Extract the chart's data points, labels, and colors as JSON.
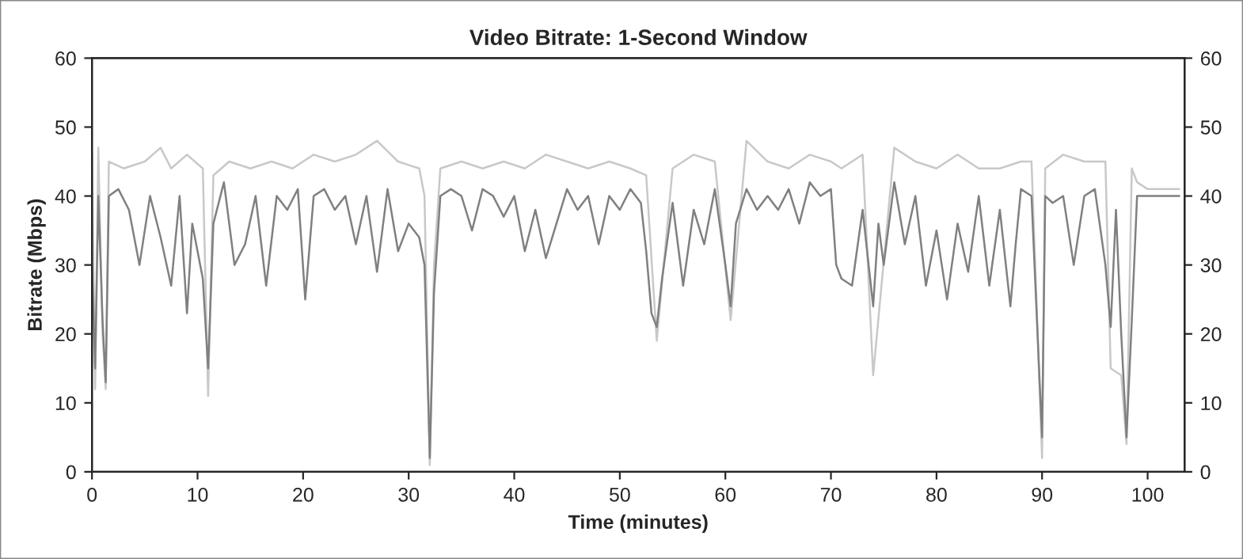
{
  "chart_data": {
    "type": "line",
    "title": "Video Bitrate: 1-Second Window",
    "xlabel": "Time (minutes)",
    "ylabel": "Bitrate (Mbps)",
    "xlim": [
      0,
      103.5
    ],
    "xticks": [
      0,
      10,
      20,
      30,
      40,
      50,
      60,
      70,
      80,
      90,
      100
    ],
    "ylim": [
      0,
      60
    ],
    "yticks": [
      0,
      10,
      20,
      30,
      40,
      50,
      60
    ],
    "y2lim": [
      0,
      60
    ],
    "y2ticks": [
      0,
      10,
      20,
      30,
      40,
      50,
      60
    ],
    "grid": false,
    "legend": false,
    "marker": "none",
    "line_style": "solid",
    "series": [
      {
        "color": "#c8c8c8",
        "x": [
          0,
          0.3,
          0.6,
          1.0,
          1.3,
          1.6,
          3,
          5,
          6.5,
          7.5,
          9,
          10.5,
          11.0,
          11.5,
          13,
          15,
          17,
          19,
          21,
          23,
          25,
          27,
          29,
          31,
          31.5,
          32.0,
          32.4,
          33,
          35,
          37,
          39,
          41,
          43,
          45,
          47,
          49,
          51,
          52.5,
          53.5,
          55,
          57,
          59,
          60.5,
          62,
          64,
          66,
          68,
          70,
          71,
          73,
          74,
          76,
          78,
          80,
          82,
          84,
          86,
          88,
          89,
          90.0,
          90.3,
          92,
          94,
          96,
          96.5,
          97.5,
          98.0,
          98.5,
          99.0,
          100,
          101,
          102,
          103
        ],
        "values": [
          46,
          12,
          47,
          20,
          12,
          45,
          44,
          45,
          47,
          44,
          46,
          44,
          11,
          43,
          45,
          44,
          45,
          44,
          46,
          45,
          46,
          48,
          45,
          44,
          40,
          1,
          30,
          44,
          45,
          44,
          45,
          44,
          46,
          45,
          44,
          45,
          44,
          43,
          19,
          44,
          46,
          45,
          22,
          48,
          45,
          44,
          46,
          45,
          44,
          46,
          14,
          47,
          45,
          44,
          46,
          44,
          44,
          45,
          45,
          2,
          44,
          46,
          45,
          45,
          15,
          14,
          4,
          44,
          42,
          41,
          41,
          41,
          41
        ]
      },
      {
        "color": "#808080",
        "x": [
          0,
          0.3,
          0.6,
          1.0,
          1.3,
          1.6,
          2.5,
          3.5,
          4.5,
          5.5,
          6.5,
          7.5,
          8.3,
          9.0,
          9.5,
          10.5,
          11.0,
          11.5,
          12.5,
          13.5,
          14.5,
          15.5,
          16.5,
          17.5,
          18.5,
          19.5,
          20.2,
          21,
          22,
          23,
          24,
          25,
          26,
          27,
          28,
          29,
          30,
          31,
          31.5,
          32.0,
          32.4,
          33,
          34,
          35,
          36,
          37,
          38,
          39,
          40,
          41,
          42,
          43,
          44,
          45,
          46,
          47,
          48,
          49,
          50,
          51,
          52,
          52.5,
          53,
          53.5,
          54,
          55,
          56,
          57,
          58,
          59,
          60,
          60.5,
          61,
          62,
          63,
          64,
          65,
          66,
          67,
          68,
          69,
          70,
          70.5,
          71,
          72,
          73,
          74,
          74.5,
          75,
          76,
          77,
          78,
          79,
          80,
          81,
          82,
          83,
          84,
          85,
          86,
          87,
          87.5,
          88,
          89,
          90.0,
          90.3,
          91,
          92,
          93,
          94,
          95,
          96,
          96.5,
          97,
          97.5,
          98.0,
          98.5,
          99.0,
          100,
          101,
          102,
          103
        ],
        "values": [
          30,
          15,
          40,
          22,
          13,
          40,
          41,
          38,
          30,
          40,
          34,
          27,
          40,
          23,
          36,
          28,
          15,
          36,
          42,
          30,
          33,
          40,
          27,
          40,
          38,
          41,
          25,
          40,
          41,
          38,
          40,
          33,
          40,
          29,
          41,
          32,
          36,
          34,
          30,
          2,
          26,
          40,
          41,
          40,
          35,
          41,
          40,
          37,
          40,
          32,
          38,
          31,
          36,
          41,
          38,
          40,
          33,
          40,
          38,
          41,
          39,
          32,
          23,
          21,
          28,
          39,
          27,
          38,
          33,
          41,
          30,
          24,
          36,
          41,
          38,
          40,
          38,
          41,
          36,
          42,
          40,
          41,
          30,
          28,
          27,
          38,
          24,
          36,
          30,
          42,
          33,
          40,
          27,
          35,
          25,
          36,
          29,
          40,
          27,
          38,
          24,
          33,
          41,
          40,
          5,
          40,
          39,
          40,
          30,
          40,
          41,
          30,
          21,
          38,
          20,
          5,
          22,
          40,
          40,
          40,
          40,
          40
        ]
      }
    ]
  }
}
